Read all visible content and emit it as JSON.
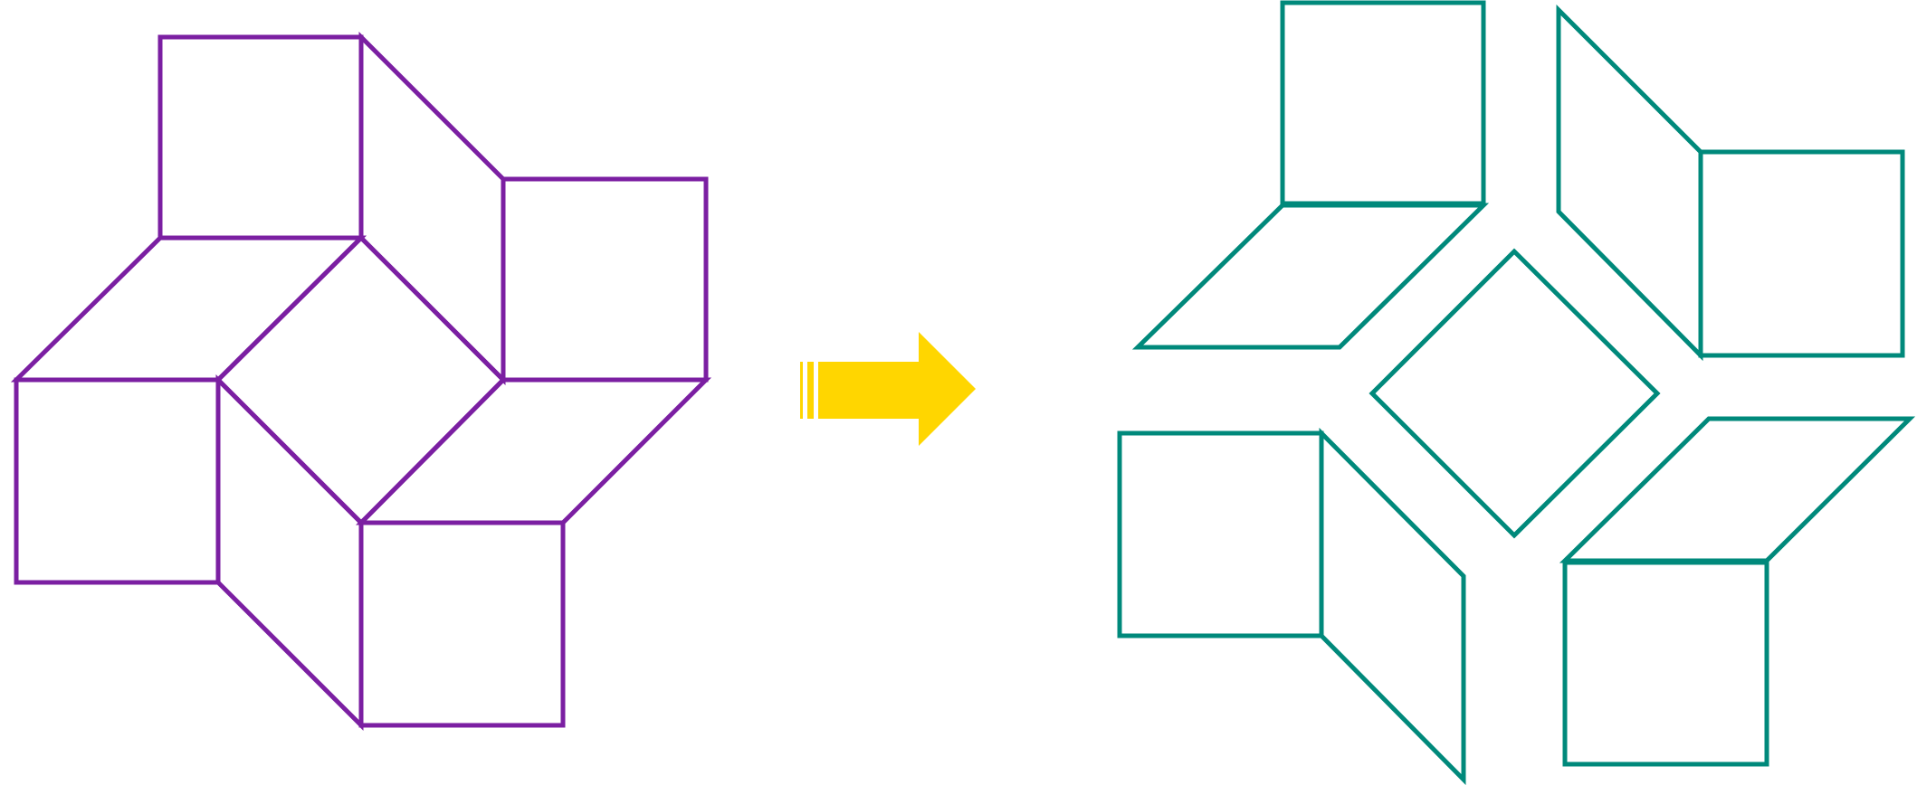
{
  "diagram": {
    "composite": {
      "color": "#7b1fa2",
      "pieces": [
        "square",
        "rhombus",
        "square",
        "rhombus",
        "square",
        "rhombus",
        "square",
        "rhombus",
        "center-square"
      ]
    },
    "arrow": {
      "color": "#ffd600"
    },
    "exploded": {
      "color": "#00897b",
      "pieces": [
        "square",
        "rhombus",
        "square",
        "rhombus",
        "square",
        "rhombus",
        "square",
        "rhombus",
        "center-square"
      ]
    }
  }
}
